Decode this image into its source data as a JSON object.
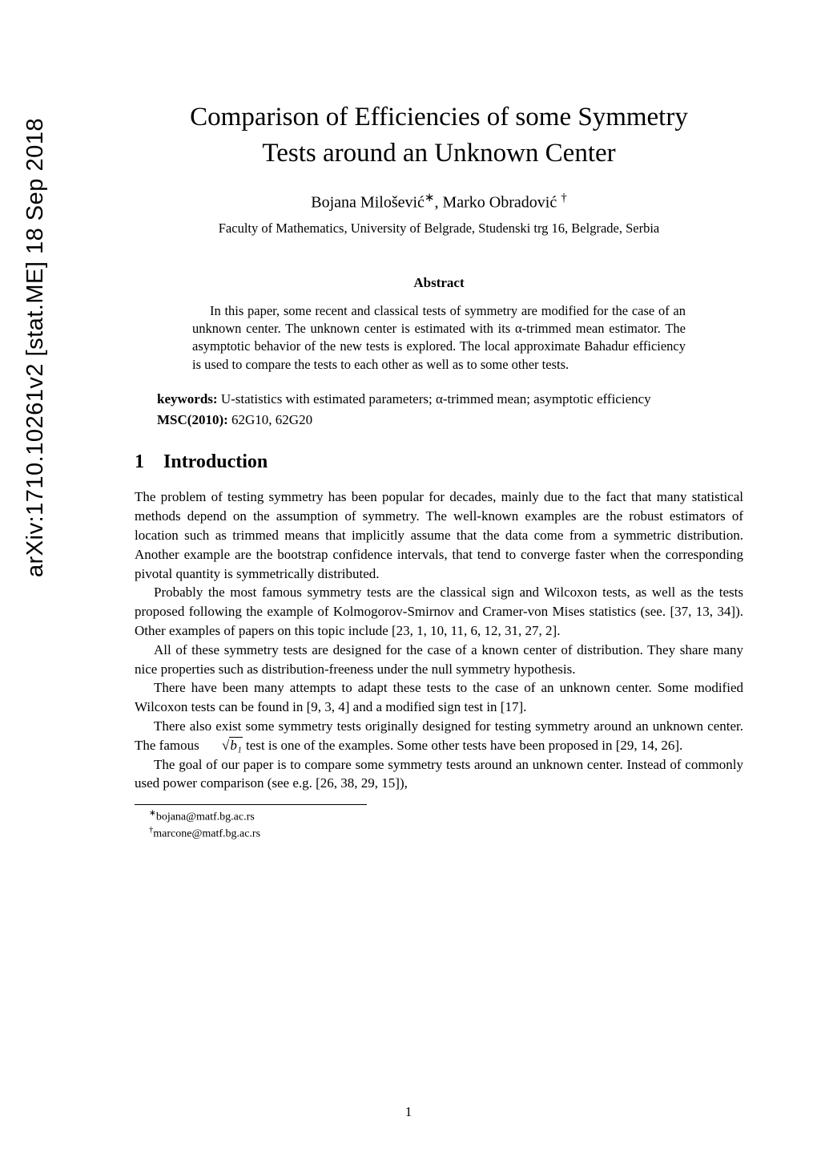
{
  "arxiv_stamp": "arXiv:1710.10261v2  [stat.ME]  18 Sep 2018",
  "title_line1": "Comparison of Efficiencies of some Symmetry",
  "title_line2": "Tests around an Unknown Center",
  "authors_prefix": "Bojana Milošević",
  "fn1_sym": "∗",
  "authors_mid": ", Marko Obradović ",
  "fn2_sym": "†",
  "affiliation": "Faculty of Mathematics, University of Belgrade, Studenski trg 16, Belgrade, Serbia",
  "abstract_heading": "Abstract",
  "abstract_body": "In this paper, some recent and classical tests of symmetry are modified for the case of an unknown center. The unknown center is estimated with its α-trimmed mean estimator. The asymptotic behavior of the new tests is explored. The local approximate Bahadur efficiency is used to compare the tests to each other as well as to some other tests.",
  "keywords_label": "keywords:",
  "keywords_text": " U-statistics with estimated parameters; α-trimmed mean; asymptotic efficiency",
  "msc_label": "MSC(2010):",
  "msc_text": " 62G10, 62G20",
  "section_number": "1",
  "section_title": "Introduction",
  "p1": "The problem of testing symmetry has been popular for decades, mainly due to the fact that many statistical methods depend on the assumption of symmetry. The well-known examples are the robust estimators of location such as trimmed means that implicitly assume that the data come from a symmetric distribution. Another example are the bootstrap confidence intervals, that tend to converge faster when the corresponding pivotal quantity is symmetrically distributed.",
  "p2": "Probably the most famous symmetry tests are the classical sign and Wilcoxon tests, as well as the tests proposed following the example of Kolmogorov-Smirnov and Cramer-von Mises statistics (see. [37, 13, 34]). Other examples of papers on this topic include [23, 1, 10, 11, 6, 12, 31, 27, 2].",
  "p3": "All of these symmetry tests are designed for the case of a known center of distribution. They share many nice properties such as distribution-freeness under the null symmetry hypothesis.",
  "p4": "There have been many attempts to adapt these tests to the case of an unknown center. Some modified Wilcoxon tests can be found in [9, 3, 4] and a modified sign test in [17].",
  "p5a": "There also exist some symmetry tests originally designed for testing symmetry around an unknown center. The famous ",
  "p5_sqrt": "√",
  "p5_radicand": "b₁",
  "p5b": " test is one of the examples. Some other tests have been proposed in [29, 14, 26].",
  "p6": "The goal of our paper is to compare some symmetry tests around an unknown center. Instead of commonly used power comparison (see e.g. [26, 38, 29, 15]),",
  "footnote1_sym": "∗",
  "footnote1_text": "bojana@matf.bg.ac.rs",
  "footnote2_sym": "†",
  "footnote2_text": "marcone@matf.bg.ac.rs",
  "page_number": "1"
}
